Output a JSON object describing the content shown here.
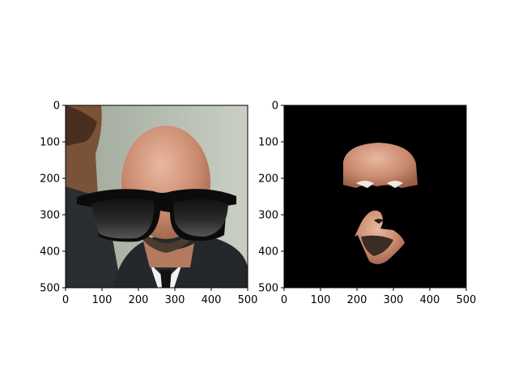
{
  "figure": {
    "background": "#ffffff",
    "panel_count": 2
  },
  "chart_data": [
    {
      "type": "image",
      "content": "photo of a bald bearded man in a suit wearing black sunglasses overlay, another person partially visible at left edge",
      "xlim": [
        0,
        500
      ],
      "ylim": [
        500,
        0
      ],
      "xticks": [
        0,
        100,
        200,
        300,
        400,
        500
      ],
      "yticks": [
        0,
        100,
        200,
        300,
        400,
        500
      ],
      "xtick_labels": [
        "0",
        "100",
        "200",
        "300",
        "400",
        "500"
      ],
      "ytick_labels": [
        "0",
        "100",
        "200",
        "300",
        "400",
        "500"
      ],
      "grid": false,
      "legend": "none"
    },
    {
      "type": "image",
      "content": "segmentation mask on black background showing only skin regions: forehead with eyes and nose/mouth/chin area",
      "xlim": [
        0,
        500
      ],
      "ylim": [
        500,
        0
      ],
      "xticks": [
        0,
        100,
        200,
        300,
        400,
        500
      ],
      "yticks": [
        0,
        100,
        200,
        300,
        400,
        500
      ],
      "xtick_labels": [
        "0",
        "100",
        "200",
        "300",
        "400",
        "500"
      ],
      "ytick_labels": [
        "0",
        "100",
        "200",
        "300",
        "400",
        "500"
      ],
      "background_color": "#000000",
      "grid": false,
      "legend": "none"
    }
  ]
}
